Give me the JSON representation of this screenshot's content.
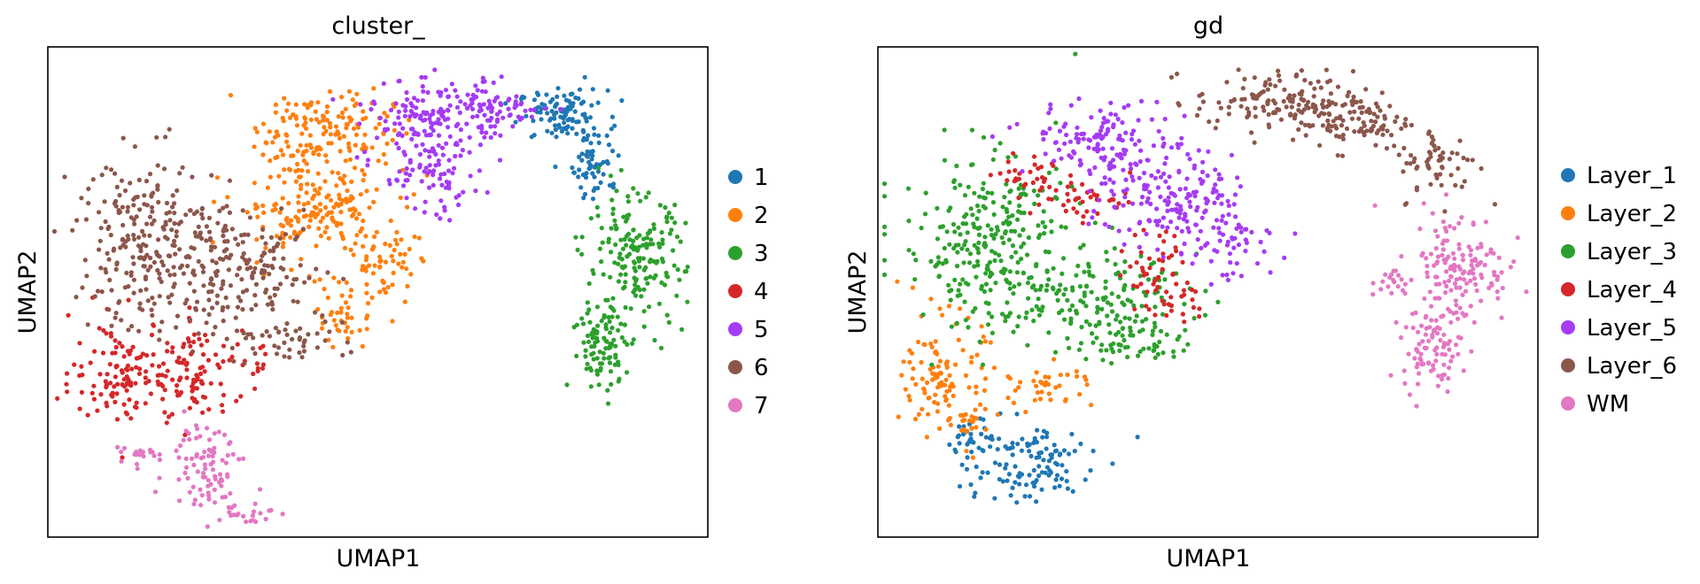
{
  "chart_data": [
    {
      "type": "scatter",
      "title": "cluster_",
      "xlabel": "UMAP1",
      "ylabel": "UMAP2",
      "xlim": [
        0,
        100
      ],
      "ylim": [
        0,
        100
      ],
      "grid": false,
      "ticks": false,
      "legend_placement": "right",
      "series": [
        {
          "name": "1",
          "color": "#1f77b4",
          "regions": [
            {
              "center": [
                78,
                86
              ],
              "spread": [
                4.5,
                3.5
              ],
              "n": 110
            },
            {
              "center": [
                83,
                76
              ],
              "spread": [
                2.5,
                4.5
              ],
              "n": 55
            }
          ]
        },
        {
          "name": "2",
          "color": "#ff7f0e",
          "regions": [
            {
              "center": [
                42,
                84
              ],
              "spread": [
                7,
                5
              ],
              "n": 130
            },
            {
              "center": [
                40,
                68
              ],
              "spread": [
                8,
                8
              ],
              "n": 200
            },
            {
              "center": [
                51,
                56
              ],
              "spread": [
                3,
                6
              ],
              "n": 60
            },
            {
              "center": [
                45,
                45
              ],
              "spread": [
                3,
                5
              ],
              "n": 40
            }
          ]
        },
        {
          "name": "3",
          "color": "#2ca02c",
          "regions": [
            {
              "center": [
                89,
                56
              ],
              "spread": [
                5,
                9
              ],
              "n": 190
            },
            {
              "center": [
                84,
                39
              ],
              "spread": [
                3,
                6
              ],
              "n": 90
            }
          ]
        },
        {
          "name": "4",
          "color": "#d62728",
          "regions": [
            {
              "center": [
                11,
                34
              ],
              "spread": [
                5,
                7
              ],
              "n": 110
            },
            {
              "center": [
                22,
                33
              ],
              "spread": [
                4,
                7
              ],
              "n": 95
            },
            {
              "center": [
                31,
                35
              ],
              "spread": [
                3,
                3
              ],
              "n": 15
            }
          ]
        },
        {
          "name": "5",
          "color": "#a53bf4",
          "regions": [
            {
              "center": [
                59,
                86
              ],
              "spread": [
                7,
                5
              ],
              "n": 150
            },
            {
              "center": [
                58,
                74
              ],
              "spread": [
                5,
                6
              ],
              "n": 90
            },
            {
              "center": [
                69,
                87
              ],
              "spread": [
                4,
                3
              ],
              "n": 45
            }
          ]
        },
        {
          "name": "6",
          "color": "#8c564b",
          "regions": [
            {
              "center": [
                16,
                60
              ],
              "spread": [
                8,
                12
              ],
              "n": 260
            },
            {
              "center": [
                30,
                54
              ],
              "spread": [
                8,
                7
              ],
              "n": 150
            },
            {
              "center": [
                36,
                40
              ],
              "spread": [
                6,
                3
              ],
              "n": 50
            }
          ]
        },
        {
          "name": "7",
          "color": "#e377c2",
          "regions": [
            {
              "center": [
                24,
                15
              ],
              "spread": [
                4,
                6
              ],
              "n": 90
            },
            {
              "center": [
                13,
                17
              ],
              "spread": [
                2,
                2
              ],
              "n": 18
            },
            {
              "center": [
                30,
                5
              ],
              "spread": [
                3,
                1.5
              ],
              "n": 20
            }
          ]
        }
      ]
    },
    {
      "type": "scatter",
      "title": "gd",
      "xlabel": "UMAP1",
      "ylabel": "UMAP2",
      "xlim": [
        0,
        100
      ],
      "ylim": [
        0,
        100
      ],
      "grid": false,
      "ticks": false,
      "legend_placement": "right",
      "series": [
        {
          "name": "Layer_1",
          "color": "#1f77b4",
          "regions": [
            {
              "center": [
                22,
                15
              ],
              "spread": [
                7,
                6
              ],
              "n": 120
            },
            {
              "center": [
                14,
                20
              ],
              "spread": [
                2,
                3
              ],
              "n": 25
            }
          ]
        },
        {
          "name": "Layer_2",
          "color": "#ff7f0e",
          "regions": [
            {
              "center": [
                10,
                33
              ],
              "spread": [
                4,
                8
              ],
              "n": 110
            },
            {
              "center": [
                25,
                31
              ],
              "spread": [
                5,
                3
              ],
              "n": 40
            },
            {
              "center": [
                14,
                23
              ],
              "spread": [
                2,
                3
              ],
              "n": 20
            }
          ]
        },
        {
          "name": "Layer_3",
          "color": "#2ca02c",
          "regions": [
            {
              "center": [
                17,
                60
              ],
              "spread": [
                9,
                12
              ],
              "n": 280
            },
            {
              "center": [
                33,
                48
              ],
              "spread": [
                10,
                6
              ],
              "n": 160
            },
            {
              "center": [
                39,
                39
              ],
              "spread": [
                5,
                3
              ],
              "n": 40
            }
          ]
        },
        {
          "name": "Layer_4",
          "color": "#d62728",
          "regions": [
            {
              "center": [
                24,
                74
              ],
              "spread": [
                4,
                2.5
              ],
              "n": 30
            },
            {
              "center": [
                31,
                69
              ],
              "spread": [
                5,
                3
              ],
              "n": 40
            },
            {
              "center": [
                42,
                56
              ],
              "spread": [
                3,
                5
              ],
              "n": 40
            },
            {
              "center": [
                45,
                48
              ],
              "spread": [
                3,
                3
              ],
              "n": 25
            }
          ]
        },
        {
          "name": "Layer_5",
          "color": "#a53bf4",
          "regions": [
            {
              "center": [
                35,
                81
              ],
              "spread": [
                8,
                5
              ],
              "n": 140
            },
            {
              "center": [
                45,
                68
              ],
              "spread": [
                8,
                6
              ],
              "n": 160
            },
            {
              "center": [
                53,
                58
              ],
              "spread": [
                4,
                5
              ],
              "n": 45
            }
          ]
        },
        {
          "name": "Layer_6",
          "color": "#8c564b",
          "regions": [
            {
              "center": [
                60,
                89
              ],
              "spread": [
                8,
                4
              ],
              "n": 130
            },
            {
              "center": [
                72,
                85
              ],
              "spread": [
                6,
                4
              ],
              "n": 100
            },
            {
              "center": [
                85,
                76
              ],
              "spread": [
                4,
                5
              ],
              "n": 60
            }
          ]
        },
        {
          "name": "WM",
          "color": "#e377c2",
          "regions": [
            {
              "center": [
                88,
                55
              ],
              "spread": [
                5,
                8
              ],
              "n": 150
            },
            {
              "center": [
                84,
                38
              ],
              "spread": [
                3,
                5
              ],
              "n": 80
            },
            {
              "center": [
                78,
                52
              ],
              "spread": [
                2,
                2
              ],
              "n": 20
            }
          ]
        }
      ]
    }
  ]
}
